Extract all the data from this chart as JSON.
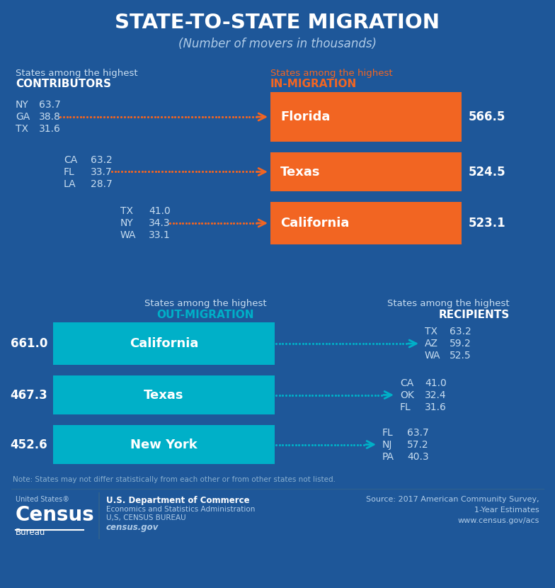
{
  "bg_color": "#1e5799",
  "title": "STATE-TO-STATE MIGRATION",
  "subtitle": "(Number of movers in thousands)",
  "orange": "#f26522",
  "teal": "#00b0c8",
  "white": "#ffffff",
  "light_text": "#c8ddf0",
  "in_migration": {
    "header_plain": "States among the highest",
    "header_bold": "IN-MIGRATION",
    "bars": [
      {
        "state": "Florida",
        "value": "566.5"
      },
      {
        "state": "Texas",
        "value": "524.5"
      },
      {
        "state": "California",
        "value": "523.1"
      }
    ],
    "contributors": [
      [
        {
          "state": "NY",
          "val": "63.7"
        },
        {
          "state": "GA",
          "val": "38.8"
        },
        {
          "state": "TX",
          "val": "31.6"
        }
      ],
      [
        {
          "state": "CA",
          "val": "63.2"
        },
        {
          "state": "FL",
          "val": "33.7"
        },
        {
          "state": "LA",
          "val": "28.7"
        }
      ],
      [
        {
          "state": "TX",
          "val": "41.0"
        },
        {
          "state": "NY",
          "val": "34.3"
        },
        {
          "state": "WA",
          "val": "33.1"
        }
      ]
    ],
    "contributors_header_plain": "States among the highest",
    "contributors_header_bold": "CONTRIBUTORS"
  },
  "out_migration": {
    "header_plain": "States among the highest",
    "header_bold": "OUT-MIGRATION",
    "bars": [
      {
        "state": "California",
        "value": "661.0"
      },
      {
        "state": "Texas",
        "value": "467.3"
      },
      {
        "state": "New York",
        "value": "452.6"
      }
    ],
    "recipients": [
      [
        {
          "state": "TX",
          "val": "63.2"
        },
        {
          "state": "AZ",
          "val": "59.2"
        },
        {
          "state": "WA",
          "val": "52.5"
        }
      ],
      [
        {
          "state": "CA",
          "val": "41.0"
        },
        {
          "state": "OK",
          "val": "32.4"
        },
        {
          "state": "FL",
          "val": "31.6"
        }
      ],
      [
        {
          "state": "FL",
          "val": "63.7"
        },
        {
          "state": "NJ",
          "val": "57.2"
        },
        {
          "state": "PA",
          "val": "40.3"
        }
      ]
    ],
    "recipients_header_plain": "States among the highest",
    "recipients_header_bold": "RECIPIENTS"
  },
  "note": "Note: States may not differ statistically from each other or from other states not listed.",
  "footer_left1": "U.S. Department of Commerce",
  "footer_left2": "Economics and Statistics Administration",
  "footer_left3": "U,S, CENSUS BUREAU",
  "footer_left4": "census.gov",
  "footer_right": "Source: 2017 American Community Survey,\n1-Year Estimates\nwww.census.gov/acs"
}
